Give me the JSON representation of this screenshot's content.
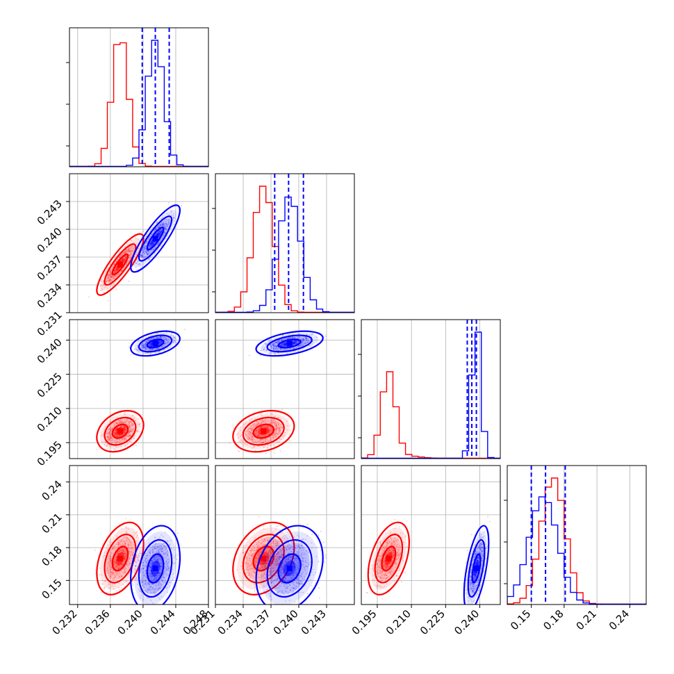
{
  "chart_data": {
    "type": "corner",
    "description_free": true,
    "series": [
      {
        "name": "red",
        "color": "#ff0000"
      },
      {
        "name": "blue",
        "color": "#0000ff"
      }
    ],
    "parameters": [
      {
        "range": [
          0.231,
          0.248
        ],
        "ticks": [
          0.232,
          0.236,
          0.24,
          0.244,
          0.248
        ],
        "tick_labels": [
          "0.232",
          "0.236",
          "0.240",
          "0.244",
          "0.248"
        ]
      },
      {
        "range": [
          0.231,
          0.246
        ],
        "ticks": [
          0.231,
          0.234,
          0.237,
          0.24,
          0.243
        ],
        "tick_labels": [
          "0.231",
          "0.234",
          "0.237",
          "0.240",
          "0.243"
        ]
      },
      {
        "range": [
          0.188,
          0.249
        ],
        "ticks": [
          0.195,
          0.21,
          0.225,
          0.24
        ],
        "tick_labels": [
          "0.195",
          "0.210",
          "0.225",
          "0.240"
        ]
      },
      {
        "range": [
          0.128,
          0.255
        ],
        "ticks": [
          0.15,
          0.18,
          0.21,
          0.24
        ],
        "tick_labels": [
          "0.15",
          "0.18",
          "0.21",
          "0.24"
        ]
      }
    ],
    "stats": {
      "red": {
        "mean": [
          0.2372,
          0.2362,
          0.2,
          0.17
        ],
        "sd": [
          0.00095,
          0.0011,
          0.003,
          0.011
        ]
      },
      "blue": {
        "mean": [
          0.2415,
          0.239,
          0.2385,
          0.161
        ],
        "sd": [
          0.001,
          0.0012,
          0.0018,
          0.013
        ]
      }
    },
    "correlations": {
      "red": [
        [
          1,
          0.85,
          0.3,
          0.4
        ],
        [
          0.85,
          1,
          0.25,
          0.3
        ],
        [
          0.3,
          0.25,
          1,
          0.45
        ],
        [
          0.4,
          0.3,
          0.45,
          1
        ]
      ],
      "blue": [
        [
          1,
          0.85,
          0.4,
          0.25
        ],
        [
          0.85,
          1,
          0.45,
          0.25
        ],
        [
          0.4,
          0.45,
          1,
          0.6
        ],
        [
          0.25,
          0.25,
          0.6,
          1
        ]
      ]
    },
    "quantile_lines": {
      "color": "#0000ff",
      "values": [
        [
          0.2399,
          0.2415,
          0.2432
        ],
        [
          0.2374,
          0.2389,
          0.2405
        ],
        [
          0.2345,
          0.2365,
          0.2385
        ],
        [
          0.15,
          0.163,
          0.181
        ]
      ]
    }
  }
}
